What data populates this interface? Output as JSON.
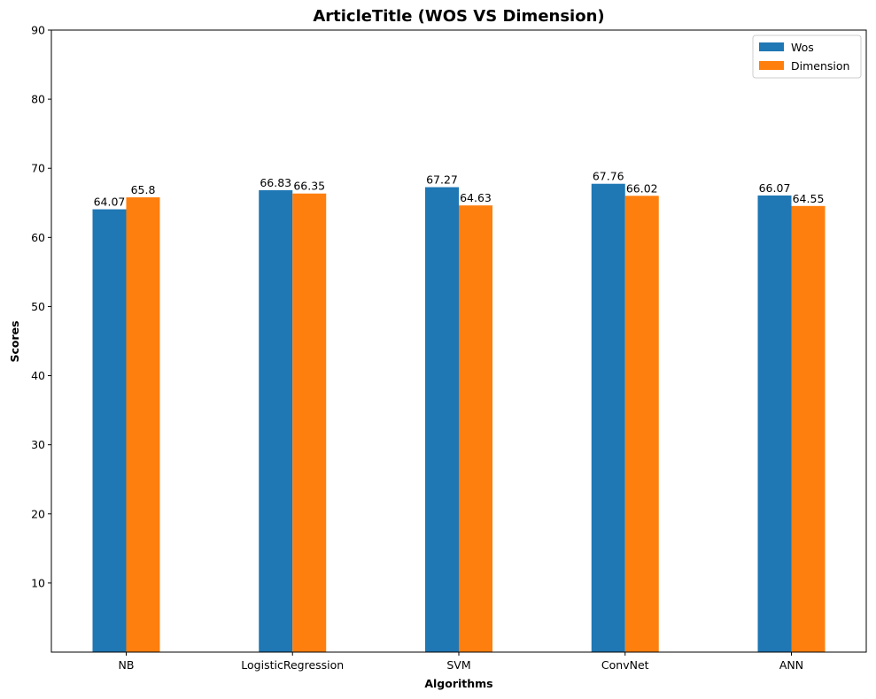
{
  "chart_data": {
    "type": "bar",
    "title": "ArticleTitle (WOS VS Dimension)",
    "xlabel": "Algorithms",
    "ylabel": "Scores",
    "categories": [
      "NB",
      "LogisticRegression",
      "SVM",
      "ConvNet",
      "ANN"
    ],
    "series": [
      {
        "name": "Wos",
        "color": "#1f77b4",
        "values": [
          64.07,
          66.83,
          67.27,
          67.76,
          66.07
        ]
      },
      {
        "name": "Dimension",
        "color": "#ff7f0e",
        "values": [
          65.8,
          66.35,
          64.63,
          66.02,
          64.55
        ]
      }
    ],
    "value_labels": [
      [
        "64.07",
        "66.83",
        "67.27",
        "67.76",
        "66.07"
      ],
      [
        "65.8",
        "66.35",
        "64.63",
        "66.02",
        "64.55"
      ]
    ],
    "ylim": [
      0,
      90
    ],
    "yticks": [
      10,
      20,
      30,
      40,
      50,
      60,
      70,
      80,
      90
    ],
    "grid": false,
    "legend_position": "top-right"
  }
}
